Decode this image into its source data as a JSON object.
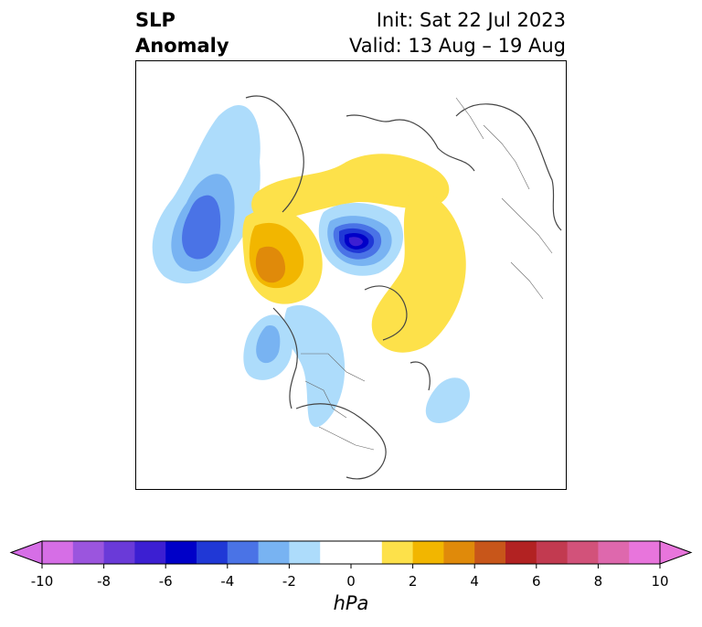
{
  "title": {
    "left_line1": "SLP",
    "left_line2": "Anomaly",
    "right_line1": "Init: Sat 22 Jul 2023",
    "right_line2": "Valid: 13 Aug – 19 Aug"
  },
  "colorbar": {
    "units": "hPa",
    "ticks": [
      "-10",
      "-8",
      "-6",
      "-4",
      "-2",
      "0",
      "2",
      "4",
      "6",
      "8",
      "10"
    ],
    "colors": [
      "#d66ee6",
      "#9b55de",
      "#6a3ad8",
      "#3c1fd2",
      "#0000c8",
      "#2038d6",
      "#4a73e6",
      "#78b3f2",
      "#addcfb",
      "#ffffff",
      "#ffffff",
      "#fde14a",
      "#f2b600",
      "#e08a0a",
      "#c8561a",
      "#b22222",
      "#c23a50",
      "#d2527a",
      "#de68ad",
      "#e875dc"
    ],
    "under_color": "#d66ee6",
    "over_color": "#e875dc"
  },
  "map": {
    "projection": "north-polar-stereographic",
    "anomalies": [
      {
        "region": "north-pacific",
        "sign": "negative",
        "min_hpa": -5
      },
      {
        "region": "central-arctic",
        "sign": "negative",
        "min_hpa": -8
      },
      {
        "region": "western-siberia-arctic-coast",
        "sign": "positive",
        "max_hpa": 2
      },
      {
        "region": "eastern-siberia",
        "sign": "positive",
        "max_hpa": 4
      },
      {
        "region": "greenland-north-atlantic",
        "sign": "positive",
        "max_hpa": 2
      },
      {
        "region": "eastern-pacific-off-north-america",
        "sign": "negative",
        "min_hpa": -3
      },
      {
        "region": "western-north-america",
        "sign": "negative",
        "min_hpa": -2
      },
      {
        "region": "central-north-atlantic",
        "sign": "negative",
        "min_hpa": -2
      }
    ]
  }
}
